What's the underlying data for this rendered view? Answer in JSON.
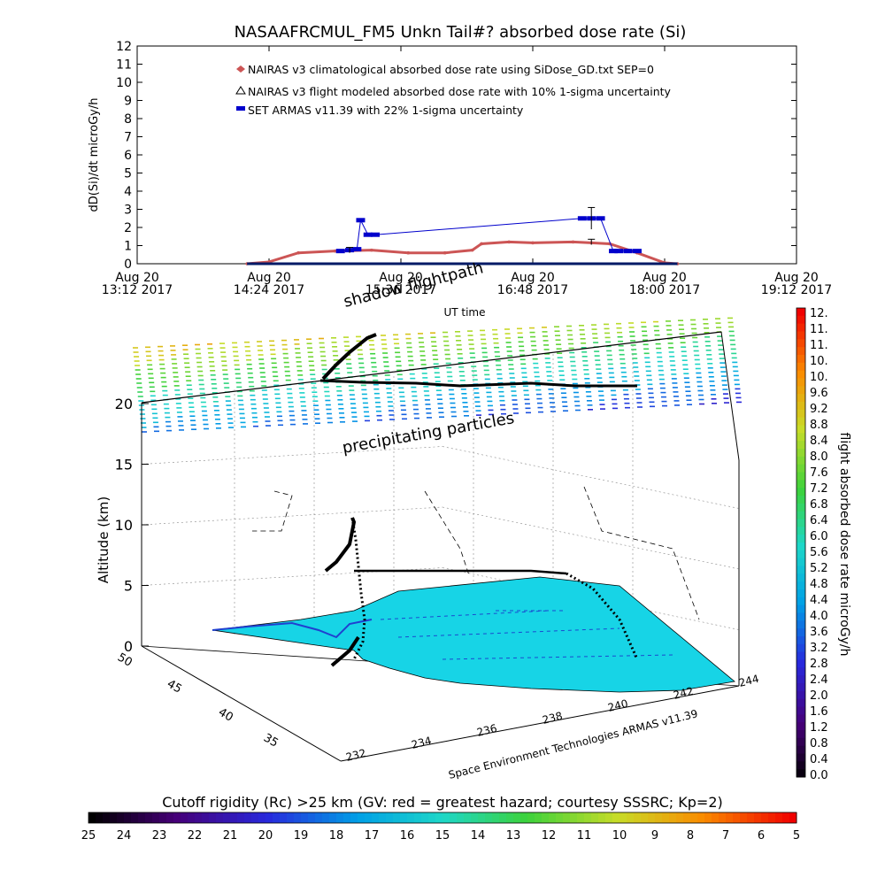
{
  "title": "NASAAFRCMUL_FM5 Unkn Tail#? absorbed dose rate (Si)",
  "chart_data": [
    {
      "type": "line",
      "ylabel": "dD(Si)/dt microGy/h",
      "xlabel": "UT time",
      "ylim": [
        0,
        12
      ],
      "y_ticks": [
        "0",
        "1",
        "2",
        "3",
        "4",
        "5",
        "6",
        "7",
        "8",
        "9",
        "10",
        "11",
        "12"
      ],
      "x_ticks": [
        {
          "date": "Aug 20",
          "time": "13:12 2017"
        },
        {
          "date": "Aug 20",
          "time": "14:24 2017"
        },
        {
          "date": "Aug 20",
          "time": "15:36 2017"
        },
        {
          "date": "Aug 20",
          "time": "16:48 2017"
        },
        {
          "date": "Aug 20",
          "time": "18:00 2017"
        },
        {
          "date": "Aug 20",
          "time": "19:12 2017"
        }
      ],
      "legend": [
        "NAIRAS v3 climatological absorbed dose rate using SiDose_GD.txt SEP=0",
        "NAIRAS v3 flight modeled absorbed dose rate with 10% 1-sigma uncertainty",
        "SET ARMAS v11.39 with 22% 1-sigma uncertainty"
      ],
      "series": [
        {
          "name": "NAIRAS v3 climatological absorbed dose rate using SiDose_GD.txt SEP=0",
          "color": "#cc5555",
          "x": [
            "14:12",
            "14:24",
            "14:40",
            "15:00",
            "15:20",
            "15:40",
            "16:00",
            "16:15",
            "16:20",
            "16:35",
            "16:48",
            "17:10",
            "17:20",
            "17:30",
            "17:45",
            "18:00",
            "18:07"
          ],
          "values": [
            0,
            0.1,
            0.6,
            0.7,
            0.75,
            0.6,
            0.6,
            0.75,
            1.1,
            1.2,
            1.15,
            1.2,
            1.15,
            1.1,
            0.6,
            0.05,
            0
          ]
        },
        {
          "name": "NAIRAS v3 flight modeled absorbed dose rate with 10% 1-sigma uncertainty",
          "color": "#000000",
          "x": [
            "14:12",
            "18:07"
          ],
          "values": [
            0,
            0
          ]
        },
        {
          "name": "SET ARMAS v11.39 with 22% 1-sigma uncertainty",
          "color": "#0000cc",
          "x": [
            "15:03",
            "15:08",
            "15:12",
            "15:14",
            "15:18",
            "15:22",
            "17:15",
            "17:20",
            "17:25",
            "17:32",
            "17:35",
            "17:40",
            "17:45"
          ],
          "values": [
            0.7,
            0.75,
            0.8,
            2.4,
            1.6,
            1.6,
            2.5,
            2.5,
            2.5,
            0.7,
            0.7,
            0.7,
            0.7
          ]
        }
      ]
    },
    {
      "type": "scatter",
      "xlabel": "Space Environment Technologies ARMAS v11.39",
      "ylabel": "Altitude (km)",
      "colorbar_label": "flight absorbed dose rate microGy/h",
      "colorbar_ticks": [
        "12.",
        "11.",
        "11.",
        "10.",
        "10.",
        "9.6",
        "9.2",
        "8.8",
        "8.4",
        "8.0",
        "7.6",
        "7.2",
        "6.8",
        "6.4",
        "6.0",
        "5.6",
        "5.2",
        "4.8",
        "4.4",
        "4.0",
        "3.6",
        "3.2",
        "2.8",
        "2.4",
        "2.0",
        "1.6",
        "1.2",
        "0.8",
        "0.4",
        "0.0"
      ],
      "z_ticks": [
        "0",
        "5",
        "10",
        "15",
        "20"
      ],
      "lat_ticks": [
        "50",
        "45",
        "40",
        "35"
      ],
      "lon_ticks": [
        "232",
        "234",
        "236",
        "238",
        "240",
        "242",
        "244"
      ],
      "annotations": [
        "shadow flightpath",
        "precipitating particles"
      ]
    }
  ],
  "rc_bar": {
    "label": "Cutoff rigidity (Rc) >25 km (GV: red = greatest hazard; courtesy SSSRC; Kp=2)",
    "ticks": [
      "25",
      "24",
      "23",
      "22",
      "21",
      "20",
      "19",
      "18",
      "17",
      "16",
      "15",
      "14",
      "13",
      "12",
      "11",
      "10",
      "9",
      "8",
      "7",
      "6",
      "5"
    ]
  }
}
